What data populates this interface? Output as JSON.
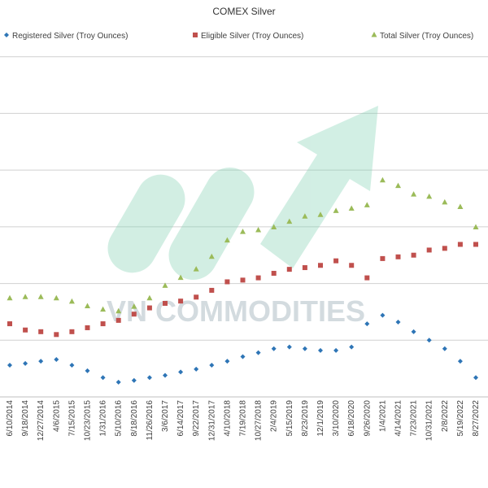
{
  "chart_data": {
    "type": "scatter",
    "title": "COMEX Silver",
    "watermark": "VN COMMODITIES",
    "categories": [
      "6/10/2014",
      "9/18/2014",
      "12/27/2014",
      "4/6/2015",
      "7/15/2015",
      "10/23/2015",
      "1/31/2016",
      "5/10/2016",
      "8/18/2016",
      "11/26/2016",
      "3/6/2017",
      "6/14/2017",
      "9/22/2017",
      "12/31/2017",
      "4/10/2018",
      "7/19/2018",
      "10/27/2018",
      "2/4/2019",
      "5/15/2019",
      "8/23/2019",
      "12/1/2019",
      "3/10/2020",
      "6/18/2020",
      "9/26/2020",
      "1/4/2021",
      "4/14/2021",
      "7/23/2021",
      "10/31/2021",
      "2/8/2022",
      "5/19/2022",
      "8/27/2022"
    ],
    "series": [
      {
        "name": "Registered Silver (Troy Ounces)",
        "color": "#2e75b6",
        "marker": "diamond",
        "values": [
          0.56,
          0.59,
          0.63,
          0.66,
          0.56,
          0.46,
          0.34,
          0.26,
          0.29,
          0.34,
          0.38,
          0.44,
          0.49,
          0.56,
          0.63,
          0.71,
          0.78,
          0.85,
          0.88,
          0.85,
          0.82,
          0.82,
          0.88,
          1.29,
          1.44,
          1.32,
          1.15,
          1.0,
          0.85,
          0.63,
          0.34
        ]
      },
      {
        "name": "Eligible Silver (Troy Ounces)",
        "color": "#c0504d",
        "marker": "square",
        "values": [
          1.29,
          1.18,
          1.15,
          1.1,
          1.15,
          1.22,
          1.29,
          1.35,
          1.46,
          1.57,
          1.65,
          1.69,
          1.76,
          1.88,
          2.03,
          2.06,
          2.1,
          2.18,
          2.25,
          2.28,
          2.32,
          2.4,
          2.32,
          2.1,
          2.44,
          2.47,
          2.5,
          2.59,
          2.62,
          2.69,
          2.69
        ]
      },
      {
        "name": "Total Silver (Troy Ounces)",
        "color": "#9bbb59",
        "marker": "triangle",
        "values": [
          1.74,
          1.76,
          1.76,
          1.74,
          1.68,
          1.6,
          1.54,
          1.51,
          1.59,
          1.74,
          1.96,
          2.1,
          2.25,
          2.47,
          2.76,
          2.91,
          2.94,
          2.99,
          3.09,
          3.18,
          3.21,
          3.28,
          3.32,
          3.38,
          3.82,
          3.72,
          3.57,
          3.53,
          3.43,
          3.35,
          2.99
        ]
      }
    ],
    "ylim": [
      0,
      7
    ],
    "gridlines": [
      1,
      2,
      3,
      4,
      5,
      6
    ],
    "grid": true,
    "legend": "top"
  }
}
